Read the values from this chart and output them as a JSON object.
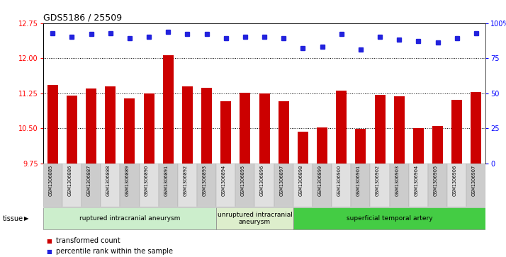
{
  "title": "GDS5186 / 25509",
  "samples": [
    "GSM1306885",
    "GSM1306886",
    "GSM1306887",
    "GSM1306888",
    "GSM1306889",
    "GSM1306890",
    "GSM1306891",
    "GSM1306892",
    "GSM1306893",
    "GSM1306894",
    "GSM1306895",
    "GSM1306896",
    "GSM1306897",
    "GSM1306898",
    "GSM1306899",
    "GSM1306900",
    "GSM1306901",
    "GSM1306902",
    "GSM1306903",
    "GSM1306904",
    "GSM1306905",
    "GSM1306906",
    "GSM1306907"
  ],
  "bar_values": [
    11.42,
    11.2,
    11.35,
    11.4,
    11.14,
    11.25,
    12.07,
    11.4,
    11.37,
    11.08,
    11.26,
    11.25,
    11.08,
    10.42,
    10.52,
    11.3,
    10.48,
    11.22,
    11.18,
    10.5,
    10.55,
    11.1,
    11.28
  ],
  "percentile_values": [
    93,
    90,
    92,
    93,
    89,
    90,
    94,
    92,
    92,
    89,
    90,
    90,
    89,
    82,
    83,
    92,
    81,
    90,
    88,
    87,
    86,
    89,
    93
  ],
  "ylim_left": [
    9.75,
    12.75
  ],
  "ylim_right": [
    0,
    100
  ],
  "yticks_left": [
    9.75,
    10.5,
    11.25,
    12.0,
    12.75
  ],
  "yticks_right": [
    0,
    25,
    50,
    75,
    100
  ],
  "bar_color": "#cc0000",
  "dot_color": "#2222dd",
  "bg_color": "#ffffff",
  "grid_lines": [
    12.0,
    11.25,
    10.5
  ],
  "groups": [
    {
      "label": "ruptured intracranial aneurysm",
      "start": 0,
      "end": 9,
      "color": "#cceecc"
    },
    {
      "label": "unruptured intracranial\naneurysm",
      "start": 9,
      "end": 13,
      "color": "#ddeecc"
    },
    {
      "label": "superficial temporal artery",
      "start": 13,
      "end": 23,
      "color": "#44cc44"
    }
  ],
  "legend_bar_label": "transformed count",
  "legend_dot_label": "percentile rank within the sample"
}
